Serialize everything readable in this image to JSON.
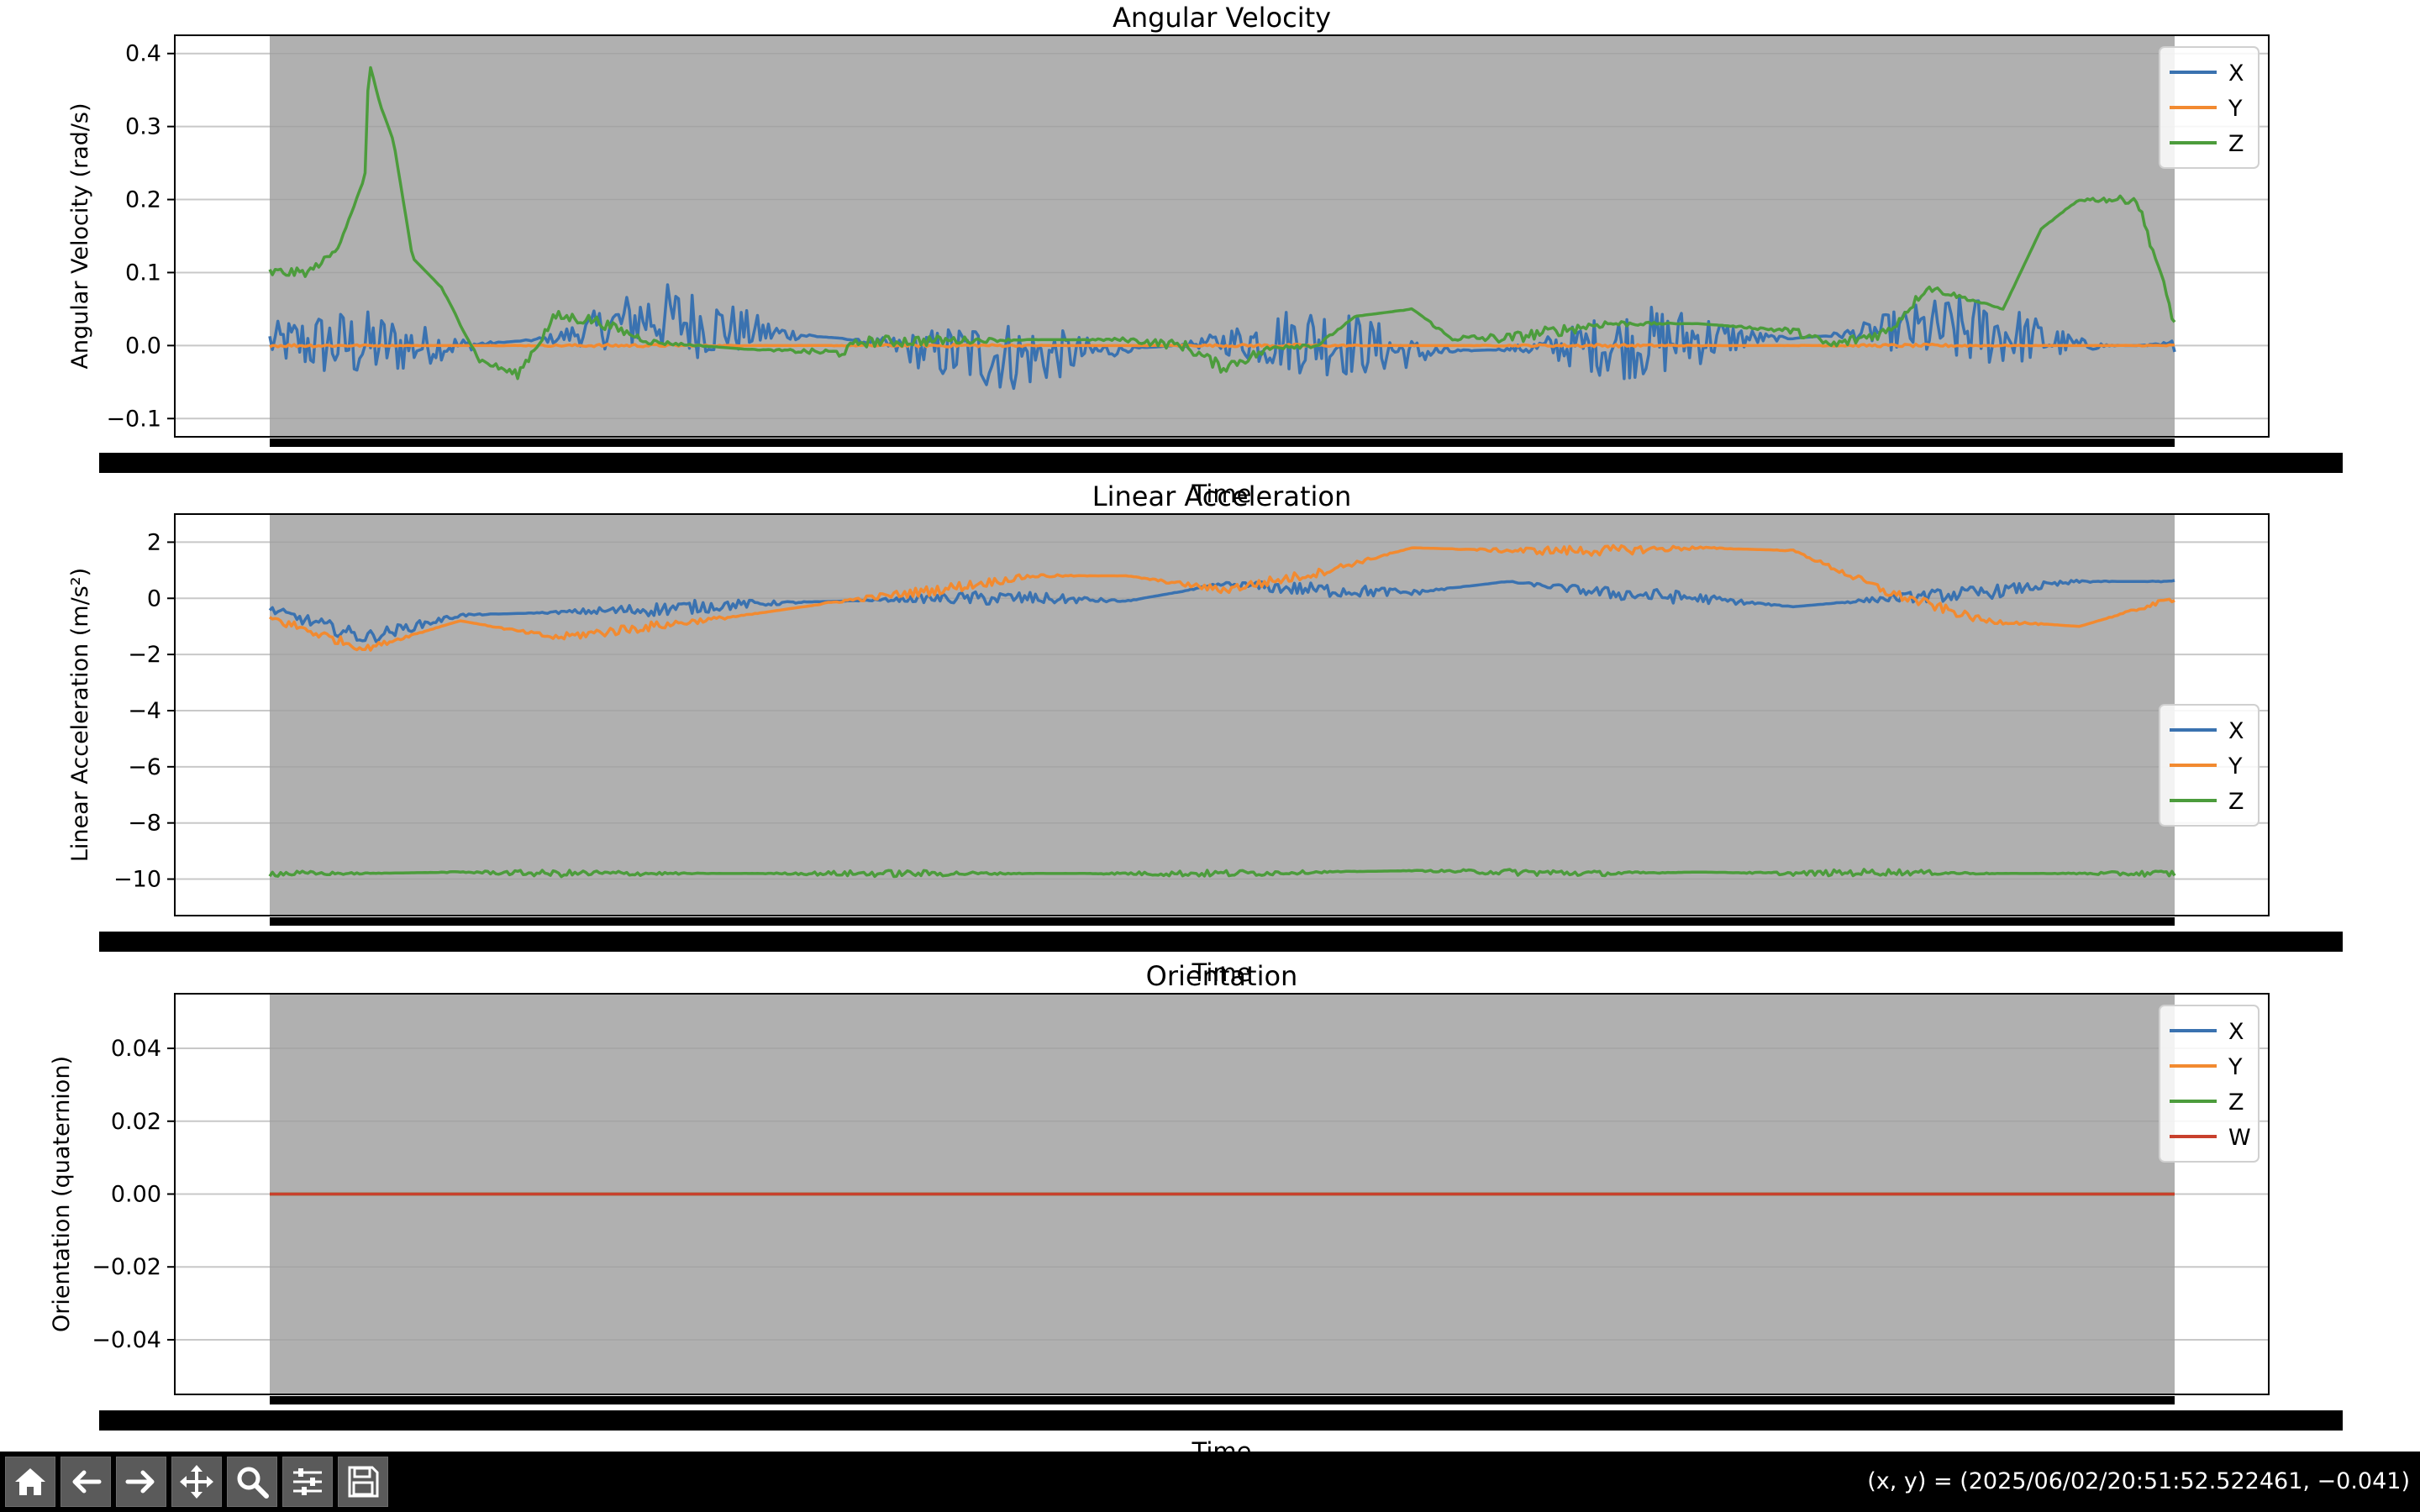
{
  "toolbar": {
    "buttons": [
      {
        "name": "home-button",
        "icon": "home-icon"
      },
      {
        "name": "back-button",
        "icon": "arrow-left-icon"
      },
      {
        "name": "forward-button",
        "icon": "arrow-right-icon"
      },
      {
        "name": "pan-button",
        "icon": "move-icon"
      },
      {
        "name": "zoom-button",
        "icon": "magnifier-icon"
      },
      {
        "name": "configure-subplots-button",
        "icon": "sliders-icon"
      },
      {
        "name": "save-button",
        "icon": "floppy-disk-icon"
      }
    ],
    "coordinates": "(x, y) = (2025/06/02/20:51:52.522461, −0.041)"
  },
  "colors": {
    "x": "#3a72b0",
    "y": "#f28a30",
    "z": "#4c9c3c",
    "w": "#c8402c",
    "plot_background": "#b0b0b0",
    "grid": "#c8c8c8",
    "tick_smear": "#000000"
  },
  "chart_data": [
    {
      "type": "line",
      "title": "Angular Velocity",
      "xlabel": "Time",
      "ylabel": "Angular Velocity (rad/s)",
      "ylim": [
        -0.125,
        0.425
      ],
      "yticks": [
        -0.1,
        0.0,
        0.1,
        0.2,
        0.3,
        0.4
      ],
      "ytick_labels": [
        "−0.1",
        "0.0",
        "0.1",
        "0.2",
        "0.3",
        "0.4"
      ],
      "grid": true,
      "legend": {
        "placement": "top-right",
        "entries": [
          "X",
          "Y",
          "Z"
        ]
      },
      "x": [
        0,
        0.05,
        0.1,
        0.15,
        0.2,
        0.25,
        0.3,
        0.35,
        0.4,
        0.45,
        0.5,
        0.55,
        0.6,
        0.65,
        0.7,
        0.75,
        0.8,
        0.85,
        0.9,
        0.95,
        1.0
      ],
      "series": [
        {
          "name": "X",
          "colorKey": "x",
          "noise": 0.05,
          "values": [
            0.005,
            0.0,
            0.0,
            0.01,
            0.04,
            0.02,
            0.01,
            -0.01,
            -0.015,
            -0.005,
            0.005,
            0.01,
            -0.01,
            -0.005,
            0.0,
            0.01,
            0.01,
            0.02,
            0.02,
            0.0,
            0.0
          ]
        },
        {
          "name": "Y",
          "colorKey": "y",
          "noise": 0.002,
          "values": [
            0.0,
            0.0,
            0.0,
            0.0,
            0.0,
            0.0,
            0.0,
            0.0,
            0.0,
            0.0,
            0.0,
            0.0,
            0.0,
            0.0,
            0.0,
            0.0,
            0.0,
            0.0,
            0.0,
            0.0,
            0.0
          ]
        },
        {
          "name": "Z",
          "colorKey": "z",
          "noise": 0.008,
          "values": [
            0.1,
            0.17,
            0.39,
            0.15,
            0.04,
            -0.03,
            0.04,
            0.0,
            -0.005,
            -0.01,
            0.005,
            0.008,
            0.008,
            -0.03,
            0.04,
            0.01,
            0.02,
            0.025,
            0.03,
            0.035,
            0.03
          ]
        }
      ],
      "series_points": [
        [
          0.0,
          0.1
        ],
        [
          0.02,
          0.1
        ],
        [
          0.035,
          0.13
        ],
        [
          0.05,
          0.23
        ],
        [
          0.052,
          0.39
        ],
        [
          0.058,
          0.33
        ],
        [
          0.065,
          0.28
        ],
        [
          0.075,
          0.12
        ],
        [
          0.09,
          0.08
        ],
        [
          0.11,
          -0.02
        ],
        [
          0.13,
          -0.04
        ],
        [
          0.15,
          0.04
        ],
        [
          0.17,
          0.035
        ],
        [
          0.2,
          0.005
        ],
        [
          0.25,
          -0.005
        ],
        [
          0.3,
          -0.01
        ],
        [
          0.31,
          0.005
        ],
        [
          0.35,
          0.007
        ],
        [
          0.4,
          0.008
        ],
        [
          0.45,
          0.008
        ],
        [
          0.48,
          0.0
        ],
        [
          0.5,
          -0.03
        ],
        [
          0.53,
          0.0
        ],
        [
          0.55,
          0.0
        ],
        [
          0.57,
          0.04
        ],
        [
          0.6,
          0.05
        ],
        [
          0.62,
          0.01
        ],
        [
          0.65,
          0.01
        ],
        [
          0.7,
          0.03
        ],
        [
          0.75,
          0.03
        ],
        [
          0.8,
          0.02
        ],
        [
          0.82,
          0.0
        ],
        [
          0.85,
          0.02
        ],
        [
          0.87,
          0.08
        ],
        [
          0.89,
          0.065
        ],
        [
          0.91,
          0.05
        ],
        [
          0.93,
          0.16
        ],
        [
          0.95,
          0.2
        ],
        [
          0.97,
          0.2
        ],
        [
          0.98,
          0.2
        ],
        [
          0.99,
          0.12
        ],
        [
          1.0,
          0.03
        ]
      ]
    },
    {
      "type": "line",
      "title": "Linear Acceleration",
      "xlabel": "Time",
      "ylabel": "Linear Acceleration (m/s²)",
      "ylim": [
        -11.3,
        3.0
      ],
      "yticks": [
        -10,
        -8,
        -6,
        -4,
        -2,
        0,
        2
      ],
      "ytick_labels": [
        "−10",
        "−8",
        "−6",
        "−4",
        "−2",
        "0",
        "2"
      ],
      "grid": true,
      "legend": {
        "placement": "center-right",
        "entries": [
          "X",
          "Y",
          "Z"
        ]
      },
      "x": [
        0,
        0.05,
        0.1,
        0.15,
        0.2,
        0.25,
        0.3,
        0.35,
        0.4,
        0.45,
        0.5,
        0.55,
        0.6,
        0.65,
        0.7,
        0.75,
        0.8,
        0.85,
        0.9,
        0.95,
        1.0
      ],
      "series": [
        {
          "name": "X",
          "colorKey": "x",
          "noise": 0.25,
          "values": [
            -0.4,
            -1.4,
            -0.6,
            -0.5,
            -0.4,
            -0.2,
            -0.1,
            0.0,
            0.0,
            -0.1,
            0.5,
            0.3,
            0.2,
            0.6,
            0.2,
            0.0,
            -0.3,
            0.0,
            0.2,
            0.6,
            0.6
          ]
        },
        {
          "name": "Y",
          "colorKey": "y",
          "noise": 0.18,
          "values": [
            -0.7,
            -1.8,
            -0.8,
            -1.4,
            -1.0,
            -0.6,
            -0.1,
            0.3,
            0.8,
            0.8,
            0.3,
            0.9,
            1.8,
            1.7,
            1.7,
            1.8,
            1.7,
            0.2,
            -0.8,
            -1.0,
            0.0
          ]
        },
        {
          "name": "Z",
          "colorKey": "z",
          "noise": 0.12,
          "values": [
            -9.8,
            -9.8,
            -9.75,
            -9.8,
            -9.8,
            -9.8,
            -9.8,
            -9.8,
            -9.8,
            -9.8,
            -9.8,
            -9.75,
            -9.7,
            -9.75,
            -9.8,
            -9.75,
            -9.8,
            -9.75,
            -9.8,
            -9.8,
            -9.8
          ]
        }
      ]
    },
    {
      "type": "line",
      "title": "Orientation",
      "xlabel": "Time",
      "ylabel": "Orientation (quaternion)",
      "ylim": [
        -0.055,
        0.055
      ],
      "yticks": [
        -0.04,
        -0.02,
        0.0,
        0.02,
        0.04
      ],
      "ytick_labels": [
        "−0.04",
        "−0.02",
        "0.00",
        "0.02",
        "0.04"
      ],
      "grid": true,
      "legend": {
        "placement": "top-right",
        "entries": [
          "X",
          "Y",
          "Z",
          "W"
        ]
      },
      "x": [
        0,
        1.0
      ],
      "series": [
        {
          "name": "X",
          "colorKey": "x",
          "noise": 0,
          "values": [
            0.0,
            0.0
          ]
        },
        {
          "name": "Y",
          "colorKey": "y",
          "noise": 0,
          "values": [
            0.0,
            0.0
          ]
        },
        {
          "name": "Z",
          "colorKey": "z",
          "noise": 0,
          "values": [
            0.0,
            0.0
          ]
        },
        {
          "name": "W",
          "colorKey": "w",
          "noise": 0,
          "values": [
            0.0,
            0.0
          ]
        }
      ]
    }
  ]
}
